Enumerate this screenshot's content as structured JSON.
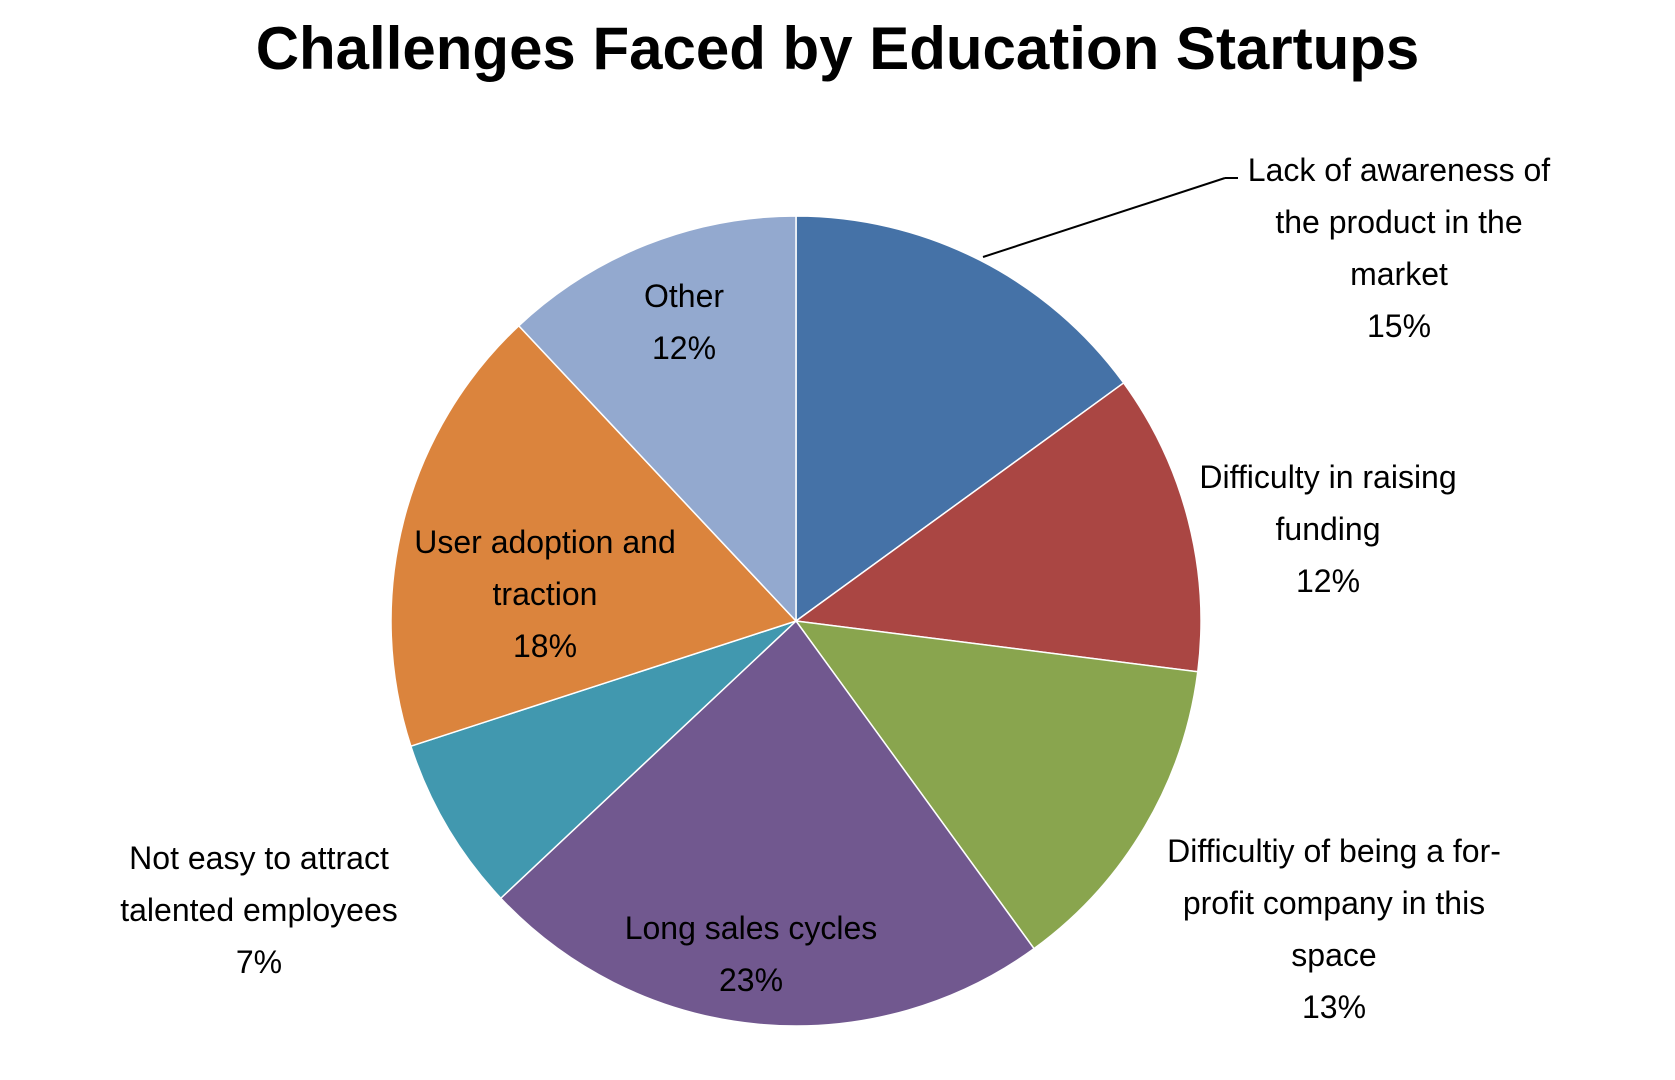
{
  "chart_data": {
    "type": "pie",
    "title": "Challenges Faced by Education Startups",
    "categories": [
      "Lack of awareness of the product in the market",
      "Difficulty in raising funding",
      "Difficultiy of being a for-profit company in this space",
      "Long sales cycles",
      "Not easy to attract talented employees",
      "User adoption and traction",
      "Other"
    ],
    "values": [
      15,
      12,
      13,
      23,
      7,
      18,
      12
    ],
    "value_labels": [
      "15%",
      "12%",
      "13%",
      "23%",
      "7%",
      "18%",
      "12%"
    ],
    "colors": [
      "#4572a7",
      "#aa4643",
      "#89a54e",
      "#71588f",
      "#4198af",
      "#db843d",
      "#93a9cf"
    ]
  }
}
